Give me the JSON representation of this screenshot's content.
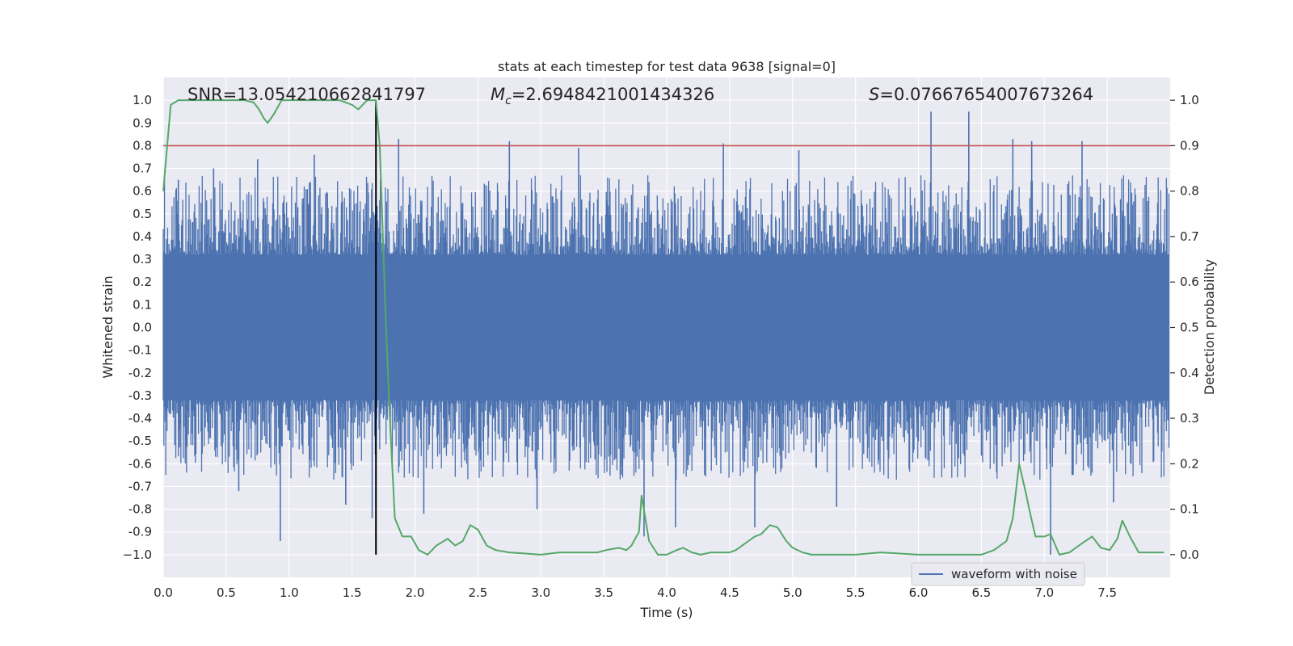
{
  "chart_data": {
    "type": "line",
    "title": "stats at each timestep for test data 9638 [signal=0]",
    "xlabel": "Time (s)",
    "ylabel_left": "Whitened strain",
    "ylabel_right": "Detection probability",
    "xlim": [
      0.0,
      8.0
    ],
    "ylim_left": [
      -1.1,
      1.1
    ],
    "ylim_right": [
      -0.05,
      1.05
    ],
    "xticks": [
      0.0,
      0.5,
      1.0,
      1.5,
      2.0,
      2.5,
      3.0,
      3.5,
      4.0,
      4.5,
      5.0,
      5.5,
      6.0,
      6.5,
      7.0,
      7.5
    ],
    "xtick_labels": [
      "0.0",
      "0.5",
      "1.0",
      "1.5",
      "2.0",
      "2.5",
      "3.0",
      "3.5",
      "4.0",
      "4.5",
      "5.0",
      "5.5",
      "6.0",
      "6.5",
      "7.0",
      "7.5"
    ],
    "yticks_left": [
      1.0,
      0.9,
      0.8,
      0.7,
      0.6,
      0.5,
      0.4,
      0.3,
      0.2,
      0.1,
      0.0,
      -0.1,
      -0.2,
      -0.3,
      -0.4,
      -0.5,
      -0.6,
      -0.7,
      -0.8,
      -0.9,
      -1.0
    ],
    "ytick_labels_left": [
      "1.0",
      "0.9",
      "0.8",
      "0.7",
      "0.6",
      "0.5",
      "0.4",
      "0.3",
      "0.2",
      "0.1",
      "0.0",
      "-0.1",
      "-0.2",
      "-0.3",
      "-0.4",
      "-0.5",
      "-0.6",
      "-0.7",
      "-0.8",
      "-0.9",
      "−1.0"
    ],
    "yticks_right": [
      1.0,
      0.9,
      0.8,
      0.7,
      0.6,
      0.5,
      0.4,
      0.3,
      0.2,
      0.1,
      0.0
    ],
    "ytick_labels_right": [
      "1.0",
      "0.9",
      "0.8",
      "0.7",
      "0.6",
      "0.5",
      "0.4",
      "0.3",
      "0.2",
      "0.1",
      "0.0"
    ],
    "annotations": {
      "snr": "SNR=13.054210662841797",
      "mc_symbol": "M",
      "mc_sub": "c",
      "mc_value": "=2.6948421001434326",
      "s_symbol": "S",
      "s_value": "=0.07667654007673264"
    },
    "legend": {
      "label": "waveform with noise",
      "location": "lower right"
    },
    "threshold": {
      "value": 0.9,
      "axis": "right",
      "color": "#c44e52"
    },
    "marker_time": 1.69,
    "colors": {
      "background": "#eaeaf2",
      "grid": "#ffffff",
      "strain": "#4c72b0",
      "probability": "#55a868",
      "threshold": "#c44e52",
      "marker": "#000000"
    },
    "strain_peaks": {
      "times": [
        0.12,
        0.4,
        0.6,
        0.75,
        0.93,
        1.2,
        1.45,
        1.66,
        1.87,
        2.07,
        2.75,
        2.97,
        3.3,
        3.82,
        4.07,
        4.45,
        4.7,
        5.05,
        5.35,
        6.1,
        6.4,
        6.75,
        6.9,
        7.05,
        7.3,
        7.55
      ],
      "values": [
        0.65,
        0.7,
        -0.72,
        0.74,
        -0.94,
        0.76,
        -0.78,
        -0.84,
        0.83,
        -0.82,
        0.82,
        -0.8,
        0.79,
        -0.92,
        -0.88,
        0.81,
        -0.88,
        0.78,
        -0.79,
        0.95,
        0.95,
        0.83,
        0.82,
        -1.0,
        0.82,
        -0.77
      ]
    },
    "probability_series": {
      "x": [
        0.0,
        0.06,
        0.12,
        0.3,
        0.5,
        0.65,
        0.72,
        0.76,
        0.8,
        0.83,
        0.88,
        0.94,
        1.0,
        1.2,
        1.4,
        1.5,
        1.55,
        1.62,
        1.67,
        1.69,
        1.72,
        1.77,
        1.8,
        1.84,
        1.9,
        1.97,
        2.03,
        2.1,
        2.17,
        2.2,
        2.26,
        2.32,
        2.38,
        2.44,
        2.5,
        2.57,
        2.64,
        2.75,
        3.0,
        3.15,
        3.3,
        3.45,
        3.52,
        3.62,
        3.68,
        3.72,
        3.78,
        3.8,
        3.86,
        3.93,
        4.0,
        4.08,
        4.13,
        4.2,
        4.27,
        4.35,
        4.42,
        4.5,
        4.55,
        4.6,
        4.65,
        4.7,
        4.75,
        4.82,
        4.88,
        4.95,
        5.0,
        5.08,
        5.15,
        5.25,
        5.5,
        5.7,
        6.0,
        6.3,
        6.5,
        6.6,
        6.7,
        6.75,
        6.8,
        6.85,
        6.88,
        6.93,
        7.0,
        7.05,
        7.12,
        7.2,
        7.3,
        7.38,
        7.45,
        7.52,
        7.58,
        7.62,
        7.68,
        7.75,
        7.82,
        7.9,
        7.95
      ],
      "y": [
        0.8,
        0.99,
        1.0,
        1.0,
        1.0,
        1.0,
        0.995,
        0.98,
        0.96,
        0.95,
        0.97,
        1.0,
        1.0,
        1.0,
        1.0,
        0.99,
        0.98,
        1.0,
        1.0,
        1.0,
        0.9,
        0.5,
        0.3,
        0.08,
        0.04,
        0.04,
        0.01,
        0.0,
        0.02,
        0.025,
        0.035,
        0.02,
        0.03,
        0.065,
        0.055,
        0.02,
        0.01,
        0.005,
        0.0,
        0.005,
        0.005,
        0.005,
        0.01,
        0.015,
        0.01,
        0.02,
        0.05,
        0.13,
        0.03,
        0.0,
        0.0,
        0.01,
        0.015,
        0.005,
        0.0,
        0.005,
        0.005,
        0.005,
        0.01,
        0.02,
        0.03,
        0.04,
        0.045,
        0.065,
        0.06,
        0.03,
        0.015,
        0.005,
        0.0,
        0.0,
        0.0,
        0.005,
        0.0,
        0.0,
        0.0,
        0.01,
        0.03,
        0.08,
        0.2,
        0.14,
        0.1,
        0.04,
        0.04,
        0.045,
        0.0,
        0.005,
        0.025,
        0.04,
        0.015,
        0.01,
        0.035,
        0.075,
        0.04,
        0.005,
        0.005,
        0.005,
        0.005
      ]
    }
  }
}
